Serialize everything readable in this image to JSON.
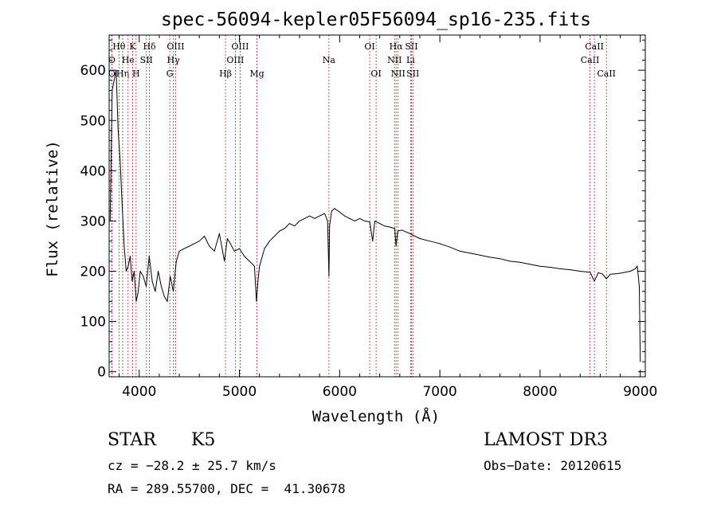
{
  "chart_data": {
    "type": "line",
    "title": "spec-56094-kepler05F56094_sp16-235.fits",
    "xlabel": "Wavelength (Å)",
    "ylabel": "Flux (relative)",
    "xlim": [
      3700,
      9050
    ],
    "ylim": [
      -10,
      670
    ],
    "xticks": [
      4000,
      5000,
      6000,
      7000,
      8000,
      9000
    ],
    "yticks": [
      0,
      100,
      200,
      300,
      400,
      500,
      600
    ],
    "series": [
      {
        "name": "flux",
        "x": [
          3710,
          3730,
          3750,
          3770,
          3790,
          3810,
          3830,
          3850,
          3870,
          3890,
          3910,
          3930,
          3950,
          3970,
          3990,
          4010,
          4040,
          4070,
          4100,
          4130,
          4160,
          4190,
          4220,
          4250,
          4280,
          4310,
          4340,
          4370,
          4400,
          4450,
          4500,
          4550,
          4600,
          4650,
          4700,
          4750,
          4800,
          4850,
          4880,
          4910,
          4950,
          5000,
          5050,
          5100,
          5150,
          5170,
          5185,
          5200,
          5250,
          5300,
          5350,
          5400,
          5450,
          5500,
          5550,
          5600,
          5650,
          5700,
          5750,
          5800,
          5850,
          5880,
          5893,
          5900,
          5920,
          5950,
          6000,
          6050,
          6100,
          6150,
          6200,
          6250,
          6300,
          6330,
          6350,
          6400,
          6450,
          6500,
          6550,
          6563,
          6580,
          6620,
          6700,
          6800,
          6900,
          7000,
          7100,
          7200,
          7300,
          7400,
          7500,
          7600,
          7700,
          7800,
          7900,
          8000,
          8100,
          8200,
          8300,
          8400,
          8500,
          8542,
          8580,
          8620,
          8662,
          8700,
          8750,
          8800,
          8850,
          8900,
          8950,
          8970,
          8990,
          9000
        ],
        "y": [
          300,
          560,
          580,
          600,
          480,
          420,
          330,
          250,
          200,
          210,
          230,
          180,
          200,
          140,
          160,
          200,
          190,
          170,
          230,
          180,
          160,
          200,
          170,
          150,
          140,
          190,
          160,
          220,
          240,
          245,
          250,
          255,
          260,
          270,
          250,
          240,
          275,
          220,
          265,
          255,
          240,
          245,
          230,
          220,
          210,
          140,
          180,
          210,
          245,
          260,
          270,
          280,
          285,
          295,
          290,
          300,
          305,
          310,
          305,
          310,
          315,
          300,
          190,
          290,
          320,
          325,
          318,
          310,
          305,
          300,
          305,
          300,
          298,
          260,
          300,
          295,
          290,
          288,
          285,
          250,
          280,
          282,
          275,
          265,
          260,
          255,
          248,
          240,
          236,
          232,
          228,
          225,
          220,
          218,
          214,
          210,
          208,
          205,
          203,
          200,
          198,
          180,
          197,
          195,
          185,
          194,
          195,
          196,
          198,
          200,
          205,
          210,
          170,
          20
        ]
      }
    ],
    "lines": [
      {
        "label": "O",
        "x": 3727,
        "row": 1
      },
      {
        "label": "O",
        "x": 3727,
        "row": 2
      },
      {
        "label": "Hθ",
        "x": 3798,
        "row": 0
      },
      {
        "label": "Hη",
        "x": 3835,
        "row": 2
      },
      {
        "label": "He",
        "x": 3889,
        "row": 1
      },
      {
        "label": "K",
        "x": 3934,
        "row": 0
      },
      {
        "label": "H",
        "x": 3969,
        "row": 2
      },
      {
        "label": "SII",
        "x": 4072,
        "row": 1
      },
      {
        "label": "Hδ",
        "x": 4102,
        "row": 0
      },
      {
        "label": "G",
        "x": 4305,
        "row": 2
      },
      {
        "label": "OIII",
        "x": 4363,
        "row": 0
      },
      {
        "label": "Hγ",
        "x": 4341,
        "row": 1
      },
      {
        "label": "Hβ",
        "x": 4861,
        "row": 2
      },
      {
        "label": "OIII",
        "x": 4959,
        "row": 1
      },
      {
        "label": "OIII",
        "x": 5007,
        "row": 0
      },
      {
        "label": "Mg",
        "x": 5175,
        "row": 2
      },
      {
        "label": "Na",
        "x": 5893,
        "row": 1
      },
      {
        "label": "OI",
        "x": 6300,
        "row": 0
      },
      {
        "label": "OI",
        "x": 6364,
        "row": 2
      },
      {
        "label": "NII",
        "x": 6548,
        "row": 1
      },
      {
        "label": "Hα",
        "x": 6563,
        "row": 0
      },
      {
        "label": "NII",
        "x": 6583,
        "row": 2
      },
      {
        "label": "SII",
        "x": 6717,
        "row": 0
      },
      {
        "label": "Li",
        "x": 6708,
        "row": 1
      },
      {
        "label": "SII",
        "x": 6731,
        "row": 2
      },
      {
        "label": "CaII",
        "x": 8498,
        "row": 1
      },
      {
        "label": "CaII",
        "x": 8542,
        "row": 0
      },
      {
        "label": "CaII",
        "x": 8662,
        "row": 2
      }
    ]
  },
  "info": {
    "object_type": "STAR",
    "subclass": "K5",
    "survey": "LAMOST DR3",
    "cz": "cz = −28.2 ± 25.7 km/s",
    "obs_date": "Obs−Date: 20120615",
    "coords": "RA = 289.55700, DEC =  41.30678"
  },
  "colors": {
    "line_marker": "#b0302a",
    "spectrum": "#000000"
  }
}
